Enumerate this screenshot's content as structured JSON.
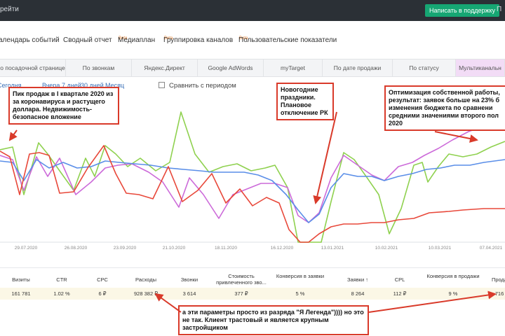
{
  "topbar": {
    "left_text": "рейти",
    "support_button": "Написать в поддержку",
    "right_text": "П"
  },
  "nav_tabs": [
    {
      "label": "алендарь событий",
      "beta": ""
    },
    {
      "label": "Сводный отчет",
      "beta": ""
    },
    {
      "label": "Медиаплан",
      "beta": "Beta"
    },
    {
      "label": "Группировка каналов",
      "beta": "Beta"
    },
    {
      "label": "Пользовательские показатели",
      "beta": "Beta"
    }
  ],
  "filter_tabs": [
    {
      "label": "о посадочной странице",
      "active": false
    },
    {
      "label": "По звонкам",
      "active": false
    },
    {
      "label": "Яндекс.Директ",
      "active": false
    },
    {
      "label": "Google AdWords",
      "active": false
    },
    {
      "label": "myTarget",
      "active": false
    },
    {
      "label": "По дате продажи",
      "active": false
    },
    {
      "label": "По статусу",
      "active": false
    },
    {
      "label": "Мультиканальн",
      "active": true
    }
  ],
  "periods": [
    "Сегодня",
    "Вчера",
    "7 дней",
    "30 дней",
    "Месяц"
  ],
  "compare_label": "Сравнить с периодом",
  "chart_data": {
    "type": "line",
    "x_ticks": [
      "29.07.2020",
      "26.08.2020",
      "23.09.2020",
      "21.10.2020",
      "18.11.2020",
      "16.12.2020",
      "13.01.2021",
      "10.02.2021",
      "10.03.2021",
      "07.04.2021"
    ],
    "colors": {
      "green": "#8fd14f",
      "purple": "#cc6ad9",
      "blue": "#5a8ee8",
      "red": "#e8483a"
    }
  },
  "annotations": [
    {
      "text": "Пик продаж в I квартале 2020 из за коронавируса и растущего доллара. Недвижимость- безопасное вложение"
    },
    {
      "text": "Новогодние праздники. Плановое отключение РК"
    },
    {
      "text": "Оптимизация собственной работы, результат: заявок больше на 23% б изменения бюджета по сравнени средними значениями второго пол 2020"
    },
    {
      "text": "а эти параметры просто из разряда \"Я Легенда\")))) но это не так. Клиент трастовый и является крупным застройщиком"
    }
  ],
  "table": {
    "headers": [
      "Визиты",
      "CTR",
      "CPC",
      "Расходы",
      "Звонки",
      "Стоимость привлеченного зво...",
      "Конверсия в заявки",
      "Заявки ↑",
      "CPL",
      "Конверсия в продажи",
      "Прода"
    ],
    "row": [
      "161 781",
      "1.02 %",
      "6 ₽",
      "928 382 ₽",
      "3 614",
      "377 ₽",
      "5 %",
      "8 264",
      "112 ₽",
      "9 %",
      "716"
    ]
  }
}
